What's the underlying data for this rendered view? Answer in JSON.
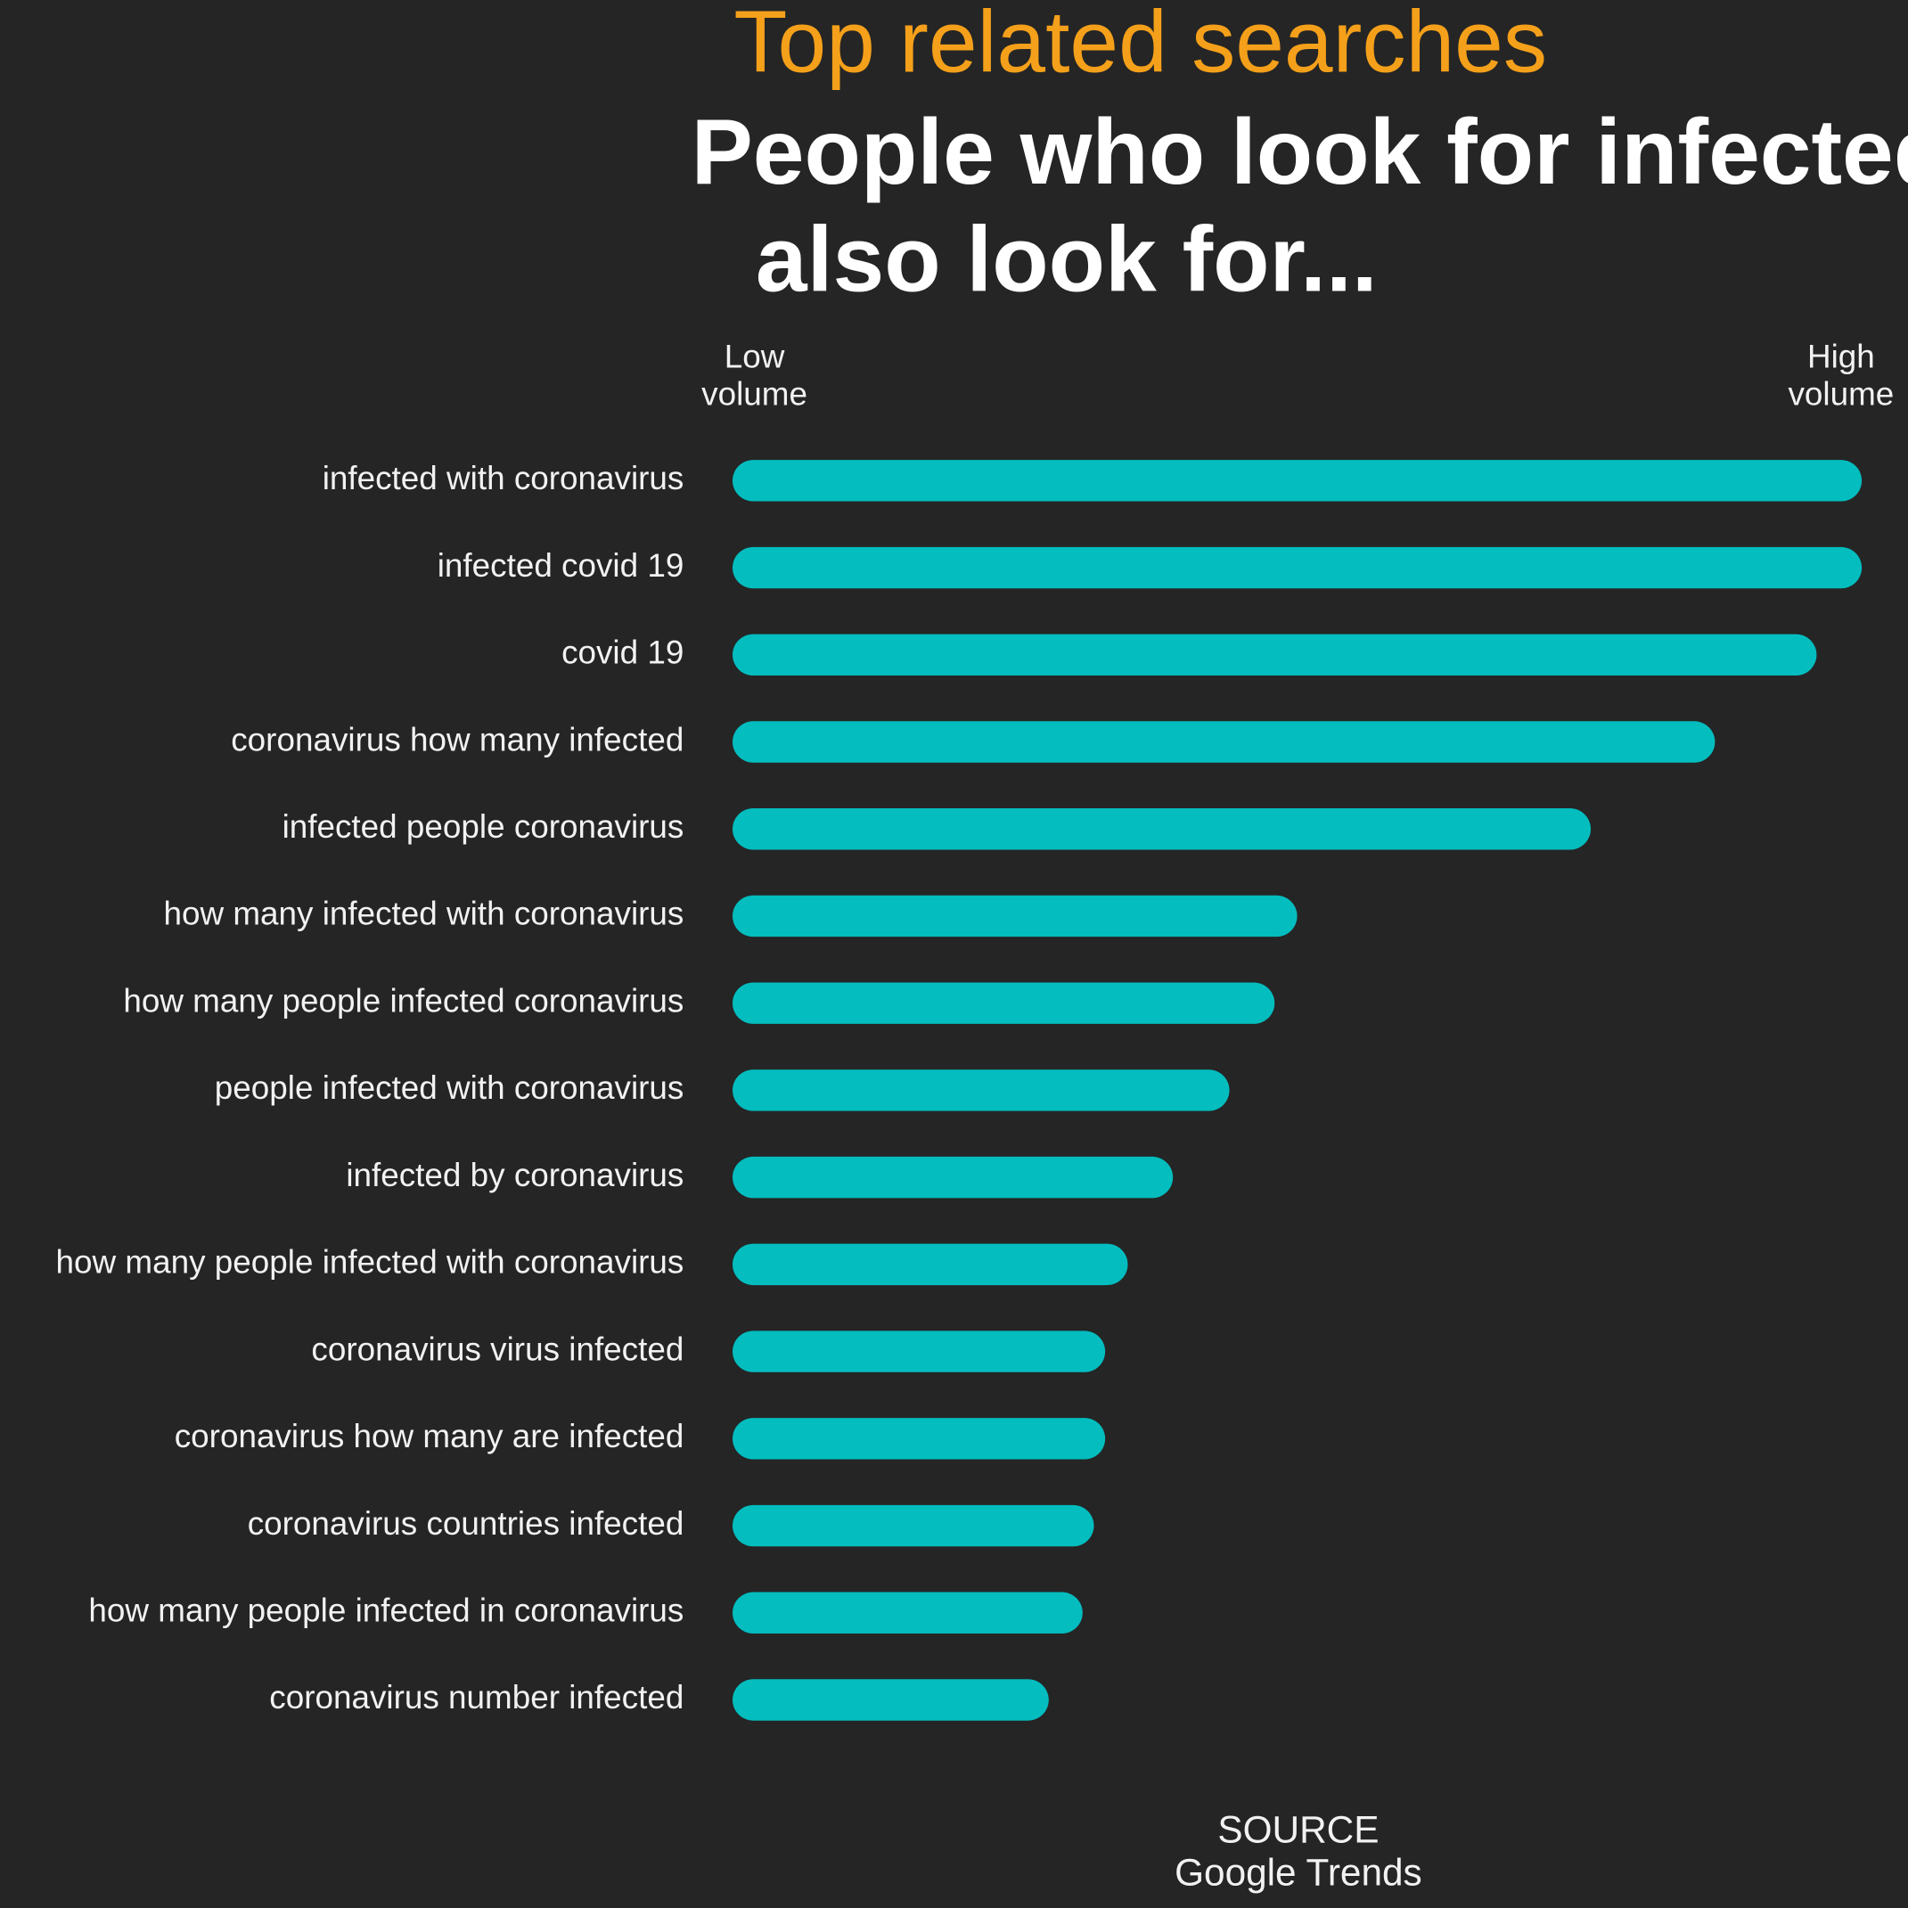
{
  "chart_data": {
    "type": "bar",
    "orientation": "horizontal",
    "title": "Top related searches",
    "subtitle": "People who look for infected also look for...",
    "low_label": "Low volume",
    "high_label": "High volume",
    "source_label": "SOURCE",
    "source": "Google Trends",
    "categories": [
      "infected with coronavirus",
      "infected covid 19",
      "covid 19",
      "coronavirus how many infected",
      "infected people coronavirus",
      "how many infected with coronavirus",
      "how many people infected coronavirus",
      "people infected with coronavirus",
      "infected by coronavirus",
      "how many people infected with coronavirus",
      "coronavirus virus infected",
      "coronavirus how many are infected",
      "coronavirus countries infected",
      "how many people infected in coronavirus",
      "coronavirus number infected"
    ],
    "values": [
      100,
      100,
      96,
      87,
      76,
      50,
      48,
      44,
      39,
      35,
      33,
      33,
      32,
      31,
      28
    ],
    "color": "#03bdbf",
    "xlim": [
      0,
      100
    ]
  }
}
